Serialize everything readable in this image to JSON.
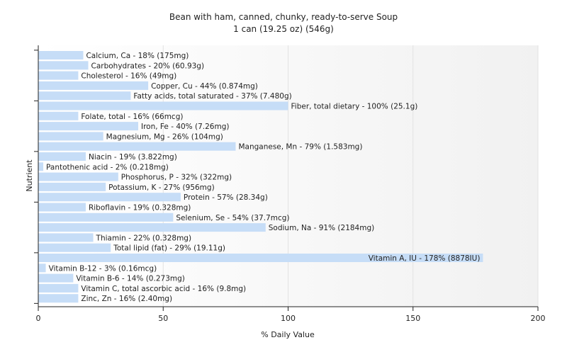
{
  "chart_data": {
    "type": "bar",
    "orientation": "horizontal",
    "title": "Bean with ham, canned, chunky, ready-to-serve Soup",
    "subtitle": "1 can (19.25 oz) (546g)",
    "xlabel": "% Daily Value",
    "ylabel": "Nutrient",
    "xlim": [
      0,
      200
    ],
    "xticks": [
      0,
      50,
      100,
      150,
      200
    ],
    "grid": true,
    "bar_color": "#c6ddf7",
    "bars": [
      {
        "label": "Calcium, Ca - 18% (175mg)",
        "value": 18
      },
      {
        "label": "Carbohydrates - 20% (60.93g)",
        "value": 20
      },
      {
        "label": "Cholesterol - 16% (49mg)",
        "value": 16
      },
      {
        "label": "Copper, Cu - 44% (0.874mg)",
        "value": 44
      },
      {
        "label": "Fatty acids, total saturated - 37% (7.480g)",
        "value": 37
      },
      {
        "label": "Fiber, total dietary - 100% (25.1g)",
        "value": 100
      },
      {
        "label": "Folate, total - 16% (66mcg)",
        "value": 16
      },
      {
        "label": "Iron, Fe - 40% (7.26mg)",
        "value": 40
      },
      {
        "label": "Magnesium, Mg - 26% (104mg)",
        "value": 26
      },
      {
        "label": "Manganese, Mn - 79% (1.583mg)",
        "value": 79
      },
      {
        "label": "Niacin - 19% (3.822mg)",
        "value": 19
      },
      {
        "label": "Pantothenic acid - 2% (0.218mg)",
        "value": 2
      },
      {
        "label": "Phosphorus, P - 32% (322mg)",
        "value": 32
      },
      {
        "label": "Potassium, K - 27% (956mg)",
        "value": 27
      },
      {
        "label": "Protein - 57% (28.34g)",
        "value": 57
      },
      {
        "label": "Riboflavin - 19% (0.328mg)",
        "value": 19
      },
      {
        "label": "Selenium, Se - 54% (37.7mcg)",
        "value": 54
      },
      {
        "label": "Sodium, Na - 91% (2184mg)",
        "value": 91
      },
      {
        "label": "Thiamin - 22% (0.328mg)",
        "value": 22
      },
      {
        "label": "Total lipid (fat) - 29% (19.11g)",
        "value": 29
      },
      {
        "label": "Vitamin A, IU - 178% (8878IU)",
        "value": 178
      },
      {
        "label": "Vitamin B-12 - 3% (0.16mcg)",
        "value": 3
      },
      {
        "label": "Vitamin B-6 - 14% (0.273mg)",
        "value": 14
      },
      {
        "label": "Vitamin C, total ascorbic acid - 16% (9.8mg)",
        "value": 16
      },
      {
        "label": "Zinc, Zn - 16% (2.40mg)",
        "value": 16
      }
    ]
  }
}
